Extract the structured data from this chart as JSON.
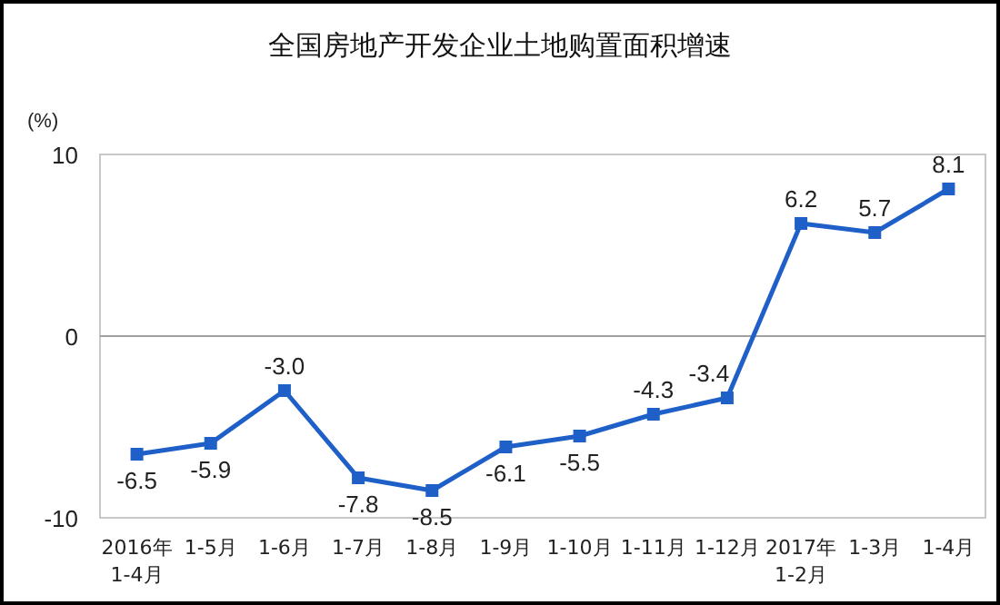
{
  "chart_data": {
    "type": "line",
    "title": "全国房地产开发企业土地购置面积增速",
    "ylabel": "(%)",
    "categories": [
      "2016年\n1-4月",
      "1-5月",
      "1-6月",
      "1-7月",
      "1-8月",
      "1-9月",
      "1-10月",
      "1-11月",
      "1-12月",
      "2017年\n1-2月",
      "1-3月",
      "1-4月"
    ],
    "series": [
      {
        "color": "#1f5fc8",
        "values": [
          -6.5,
          -5.9,
          -3.0,
          -7.8,
          -8.5,
          -6.1,
          -5.5,
          -4.3,
          -3.4,
          6.2,
          5.7,
          8.1
        ]
      }
    ],
    "value_labels": [
      "-6.5",
      "-5.9",
      "-3.0",
      "-7.8",
      "-8.5",
      "-6.1",
      "-5.5",
      "-4.3",
      "-3.4",
      "6.2",
      "5.7",
      "8.1"
    ],
    "ylim": [
      -10,
      10
    ],
    "yticks": [
      -10,
      0,
      10
    ],
    "grid": false,
    "marker": "square",
    "line_style": "solid",
    "ref_lines": [
      {
        "axis": "y",
        "value": 0,
        "color": "#a0a0a0"
      }
    ]
  }
}
